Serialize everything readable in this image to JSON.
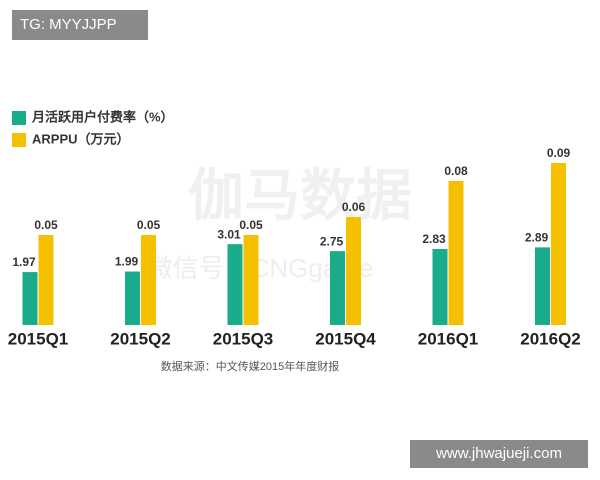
{
  "chart_data": {
    "type": "bar",
    "categories": [
      "2015Q1",
      "2015Q2",
      "2015Q3",
      "2015Q4",
      "2016Q1",
      "2016Q2"
    ],
    "series": [
      {
        "name": "月活跃用户付费率（%）",
        "color": "#1aab8a",
        "values": [
          1.97,
          1.99,
          3.01,
          2.75,
          2.83,
          2.89
        ]
      },
      {
        "name": "ARPPU（万元）",
        "color": "#f5c000",
        "axis": "y2",
        "values": [
          0.05,
          0.05,
          0.05,
          0.06,
          0.08,
          0.09
        ]
      }
    ],
    "ylim": [
      0,
      6.7
    ],
    "y2lim": [
      0,
      0.1
    ],
    "grid": false,
    "watermark": "伽马数据",
    "watermark_sub": "微信号：CNGgame",
    "source": "数据来源：中文传媒2015年年度财报"
  },
  "overlay": {
    "top_tag": "TG: MYYJJPP",
    "bottom_tag": "www.jhwajueji.com"
  }
}
